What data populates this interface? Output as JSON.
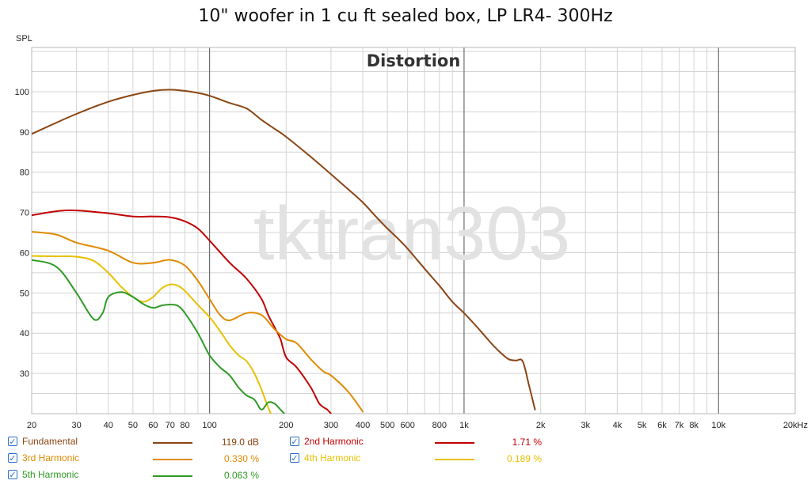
{
  "title": "10\" woofer in 1 cu ft sealed box, LP LR4- 300Hz",
  "watermark": "tktran303",
  "chart_data": {
    "type": "line",
    "title": "Distortion",
    "ylabel": "SPL",
    "xscale": "log",
    "xlim": [
      20,
      20000
    ],
    "ylim": [
      20,
      111
    ],
    "grid": true,
    "y_ticks": [
      "30",
      "40",
      "50",
      "60",
      "70",
      "80",
      "90",
      "100"
    ],
    "y_tick_values": [
      30,
      40,
      50,
      60,
      70,
      80,
      90,
      100
    ],
    "x_ticks": [
      "20",
      "30",
      "40",
      "50",
      "60",
      "70",
      "80",
      "100",
      "200",
      "300",
      "400",
      "500",
      "600",
      "800",
      "1k",
      "2k",
      "3k",
      "4k",
      "5k",
      "6k",
      "7k",
      "8k",
      "10k",
      "20kHz"
    ],
    "x_tick_values": [
      20,
      30,
      40,
      50,
      60,
      70,
      80,
      100,
      200,
      300,
      400,
      500,
      600,
      800,
      1000,
      2000,
      3000,
      4000,
      5000,
      6000,
      7000,
      8000,
      10000,
      20000
    ],
    "series": [
      {
        "name": "Fundamental",
        "value": "119.0 dB",
        "color": "#8b4513",
        "x": [
          20,
          25,
          30,
          40,
          50,
          60,
          70,
          80,
          90,
          100,
          120,
          140,
          160,
          180,
          200,
          250,
          300,
          350,
          400,
          450,
          500,
          550,
          600,
          700,
          800,
          900,
          1000,
          1100,
          1200,
          1300,
          1400,
          1500,
          1600,
          1700,
          1800,
          1900
        ],
        "y": [
          89.5,
          92.3,
          94.5,
          97.5,
          99.2,
          100.2,
          100.5,
          100.2,
          99.7,
          99,
          97.2,
          95.8,
          93,
          90.8,
          88.8,
          83.8,
          79.5,
          75.8,
          72.5,
          69,
          66,
          63.5,
          61,
          56,
          51.8,
          47.8,
          45,
          42.2,
          39.5,
          37,
          35,
          33.5,
          33.2,
          33,
          27,
          21
        ]
      },
      {
        "name": "2nd Harmonic",
        "value": "1.71 %",
        "color": "#c00000",
        "x": [
          20,
          25,
          30,
          40,
          50,
          60,
          70,
          80,
          90,
          100,
          120,
          140,
          160,
          170,
          180,
          190,
          200,
          220,
          250,
          270,
          290,
          300
        ],
        "y": [
          69.3,
          70.3,
          70.5,
          69.8,
          69,
          69,
          68.8,
          67.8,
          66,
          63,
          57.5,
          53.5,
          48.5,
          44.5,
          41.5,
          38.5,
          34,
          31.5,
          26.5,
          22.5,
          21,
          20
        ]
      },
      {
        "name": "3rd Harmonic",
        "value": "0.330 %",
        "color": "#e08a00",
        "x": [
          20,
          25,
          30,
          40,
          50,
          60,
          70,
          80,
          90,
          100,
          110,
          120,
          140,
          160,
          180,
          200,
          220,
          250,
          280,
          300,
          350,
          400
        ],
        "y": [
          65.2,
          64.5,
          62.5,
          60.5,
          57.5,
          57.5,
          58.2,
          56.8,
          53,
          48.5,
          44.5,
          43.2,
          45,
          44.5,
          41,
          38.5,
          37.5,
          33.5,
          30.5,
          29.5,
          25.5,
          20.5
        ]
      },
      {
        "name": "4th Harmonic",
        "value": "0.189 %",
        "color": "#e8c000",
        "x": [
          20,
          25,
          30,
          35,
          40,
          45,
          50,
          55,
          60,
          65,
          70,
          75,
          80,
          90,
          100,
          110,
          120,
          130,
          140,
          150,
          160,
          170,
          180
        ],
        "y": [
          59.2,
          59.1,
          59,
          58,
          55,
          51.5,
          49,
          47.8,
          49,
          51.2,
          52.1,
          51.8,
          50.5,
          47,
          44,
          40.5,
          37,
          34.5,
          33,
          30,
          26,
          21.5,
          18
        ]
      },
      {
        "name": "5th Harmonic",
        "value": "0.063 %",
        "color": "#2e9a25",
        "x": [
          20,
          25,
          30,
          35,
          38,
          40,
          45,
          50,
          55,
          60,
          65,
          70,
          75,
          80,
          90,
          100,
          110,
          120,
          130,
          140,
          150,
          160,
          170,
          180,
          190,
          200
        ],
        "y": [
          58.2,
          56.5,
          50,
          43.5,
          45,
          49,
          50.2,
          49,
          47.2,
          46.3,
          46.9,
          47.1,
          46.8,
          45,
          40,
          34.5,
          31.5,
          29.5,
          26.5,
          24.5,
          23.5,
          21,
          22.8,
          22.5,
          21,
          19.5
        ]
      }
    ]
  },
  "legend": {
    "checkmark": "✓",
    "items": [
      {
        "label": "Fundamental",
        "value": "119.0 dB",
        "color": "#8b4513",
        "checked": true
      },
      {
        "label": "2nd Harmonic",
        "value": "1.71 %",
        "color": "#c00000",
        "checked": true
      },
      {
        "label": "3rd Harmonic",
        "value": "0.330 %",
        "color": "#e08a00",
        "checked": true
      },
      {
        "label": "4th Harmonic",
        "value": "0.189 %",
        "color": "#e8c000",
        "checked": true
      },
      {
        "label": "5th Harmonic",
        "value": "0.063 %",
        "color": "#2e9a25",
        "checked": true
      }
    ]
  }
}
